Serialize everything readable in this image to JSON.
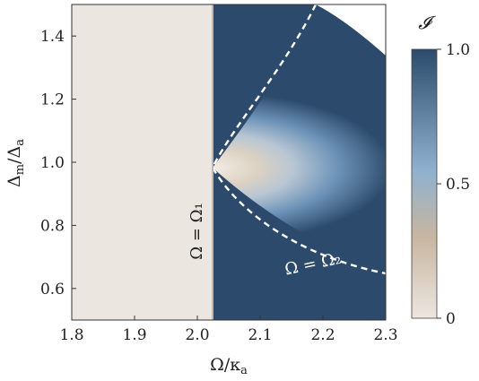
{
  "chart_data": {
    "type": "heatmap",
    "xlabel": "Ω/κ_a",
    "ylabel": "Δ_m/Δ_a",
    "xlim": [
      1.8,
      2.3
    ],
    "ylim": [
      0.5,
      1.5
    ],
    "x_ticks": [
      "1.8",
      "1.9",
      "2.0",
      "2.1",
      "2.2",
      "2.3"
    ],
    "y_ticks": [
      "0.6",
      "0.8",
      "1.0",
      "1.2",
      "1.4"
    ],
    "threshold_omega1": 2.025,
    "annotations": [
      "Ω = Ω₁",
      "Ω = Ω₂"
    ],
    "colorbar": {
      "label": "𝓘",
      "range": [
        0,
        1
      ],
      "ticks": [
        "0",
        "0.5",
        "1.0"
      ],
      "colors": [
        "#ece6e0",
        "#c8b6a0",
        "#8fb1cf",
        "#2c4b6c"
      ]
    },
    "grid": false
  }
}
